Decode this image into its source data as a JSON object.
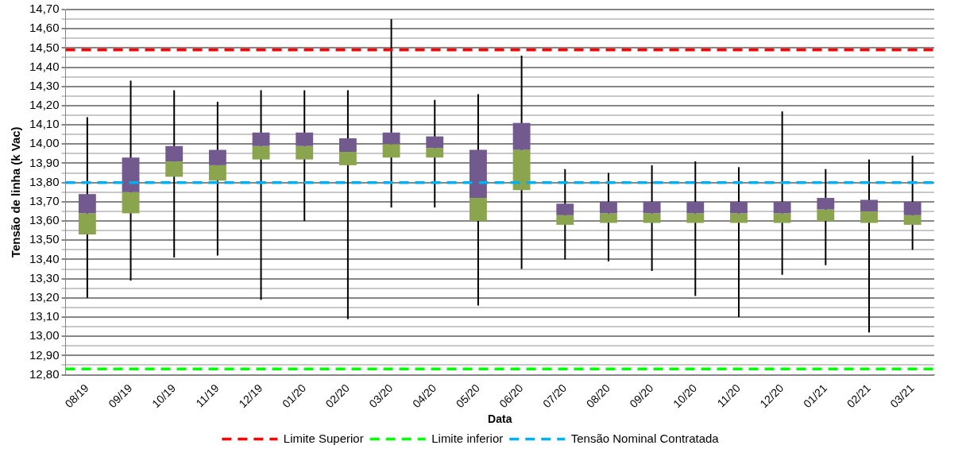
{
  "chart_data": {
    "type": "box",
    "xlabel": "Data",
    "ylabel": "Tensão de linha (k Vac)",
    "categories": [
      "08/19",
      "09/19",
      "10/19",
      "11/19",
      "12/19",
      "01/20",
      "02/20",
      "03/20",
      "04/20",
      "05/20",
      "06/20",
      "07/20",
      "08/20",
      "09/20",
      "10/20",
      "11/20",
      "12/20",
      "01/21",
      "02/21",
      "03/21"
    ],
    "series": [
      {
        "color": "#8aa54e",
        "boxes": [
          {
            "low": 13.2,
            "q1": 13.53,
            "median": 13.64,
            "q3": 13.74,
            "high": 14.14
          },
          {
            "low": 13.29,
            "q1": 13.64,
            "median": 13.75,
            "q3": 13.93,
            "high": 14.33
          },
          {
            "low": 13.41,
            "q1": 13.83,
            "median": 13.91,
            "q3": 13.99,
            "high": 14.28
          },
          {
            "low": 13.42,
            "q1": 13.81,
            "median": 13.89,
            "q3": 13.97,
            "high": 14.22
          },
          {
            "low": 13.19,
            "q1": 13.92,
            "median": 13.99,
            "q3": 14.06,
            "high": 14.28
          },
          {
            "low": 13.6,
            "q1": 13.92,
            "median": 13.99,
            "q3": 14.06,
            "high": 14.28
          },
          {
            "low": 13.09,
            "q1": 13.89,
            "median": 13.96,
            "q3": 14.03,
            "high": 14.28
          },
          {
            "low": 13.67,
            "q1": 13.93,
            "median": 14.0,
            "q3": 14.06,
            "high": 14.65
          },
          {
            "low": 13.67,
            "q1": 13.93,
            "median": 13.98,
            "q3": 14.04,
            "high": 14.23
          },
          {
            "low": 13.16,
            "q1": 13.6,
            "median": 13.72,
            "q3": 13.97,
            "high": 14.26
          },
          {
            "low": 13.35,
            "q1": 13.76,
            "median": 13.97,
            "q3": 14.11,
            "high": 14.46
          },
          {
            "low": 13.4,
            "q1": 13.58,
            "median": 13.63,
            "q3": 13.69,
            "high": 13.87
          },
          {
            "low": 13.39,
            "q1": 13.59,
            "median": 13.64,
            "q3": 13.7,
            "high": 13.85
          },
          {
            "low": 13.34,
            "q1": 13.59,
            "median": 13.64,
            "q3": 13.7,
            "high": 13.89
          },
          {
            "low": 13.21,
            "q1": 13.59,
            "median": 13.64,
            "q3": 13.7,
            "high": 13.91
          },
          {
            "low": 13.1,
            "q1": 13.59,
            "median": 13.64,
            "q3": 13.7,
            "high": 13.88
          },
          {
            "low": 13.32,
            "q1": 13.59,
            "median": 13.64,
            "q3": 13.7,
            "high": 14.17
          },
          {
            "low": 13.37,
            "q1": 13.6,
            "median": 13.66,
            "q3": 13.72,
            "high": 13.87
          },
          {
            "low": 13.02,
            "q1": 13.59,
            "median": 13.65,
            "q3": 13.71,
            "high": 13.92
          },
          {
            "low": 13.45,
            "q1": 13.58,
            "median": 13.63,
            "q3": 13.7,
            "high": 13.94
          }
        ]
      }
    ],
    "ylim": [
      12.8,
      14.7
    ],
    "yticks": [
      {
        "value": 12.8,
        "label": "12,80"
      },
      {
        "value": 12.85,
        "label": null
      },
      {
        "value": 12.9,
        "label": "12,90"
      },
      {
        "value": 12.95,
        "label": null
      },
      {
        "value": 13.0,
        "label": "13,00"
      },
      {
        "value": 13.05,
        "label": null
      },
      {
        "value": 13.1,
        "label": "13,10"
      },
      {
        "value": 13.15,
        "label": null
      },
      {
        "value": 13.2,
        "label": "13,20"
      },
      {
        "value": 13.25,
        "label": null
      },
      {
        "value": 13.3,
        "label": "13,30"
      },
      {
        "value": 13.35,
        "label": null
      },
      {
        "value": 13.4,
        "label": "13,40"
      },
      {
        "value": 13.45,
        "label": null
      },
      {
        "value": 13.5,
        "label": "13,50"
      },
      {
        "value": 13.55,
        "label": null
      },
      {
        "value": 13.6,
        "label": "13,60"
      },
      {
        "value": 13.65,
        "label": null
      },
      {
        "value": 13.7,
        "label": "13,70"
      },
      {
        "value": 13.75,
        "label": null
      },
      {
        "value": 13.8,
        "label": "13,80"
      },
      {
        "value": 13.85,
        "label": null
      },
      {
        "value": 13.9,
        "label": "13,90"
      },
      {
        "value": 13.95,
        "label": null
      },
      {
        "value": 14.0,
        "label": "14,00"
      },
      {
        "value": 14.05,
        "label": null
      },
      {
        "value": 14.1,
        "label": "14,10"
      },
      {
        "value": 14.15,
        "label": null
      },
      {
        "value": 14.2,
        "label": "14,20"
      },
      {
        "value": 14.25,
        "label": null
      },
      {
        "value": 14.3,
        "label": "14,30"
      },
      {
        "value": 14.35,
        "label": null
      },
      {
        "value": 14.4,
        "label": "14,40"
      },
      {
        "value": 14.45,
        "label": null
      },
      {
        "value": 14.5,
        "label": "14,50"
      },
      {
        "value": 14.55,
        "label": null
      },
      {
        "value": 14.6,
        "label": "14,60"
      },
      {
        "value": 14.65,
        "label": null
      },
      {
        "value": 14.7,
        "label": "14,70"
      }
    ],
    "grid": "y",
    "legend": "bottom",
    "ref_lines": [
      {
        "axis": "y",
        "value": 14.49,
        "label": "Limite Superior",
        "color": "#ff0000",
        "line_style": "dashed"
      },
      {
        "axis": "y",
        "value": 12.83,
        "label": "Limite inferior",
        "color": "#00ff00",
        "line_style": "dashed"
      },
      {
        "axis": "y",
        "value": 13.8,
        "label": "Tensão Nominal Contratada",
        "color": "#00b0f0",
        "line_style": "dashed"
      }
    ]
  }
}
